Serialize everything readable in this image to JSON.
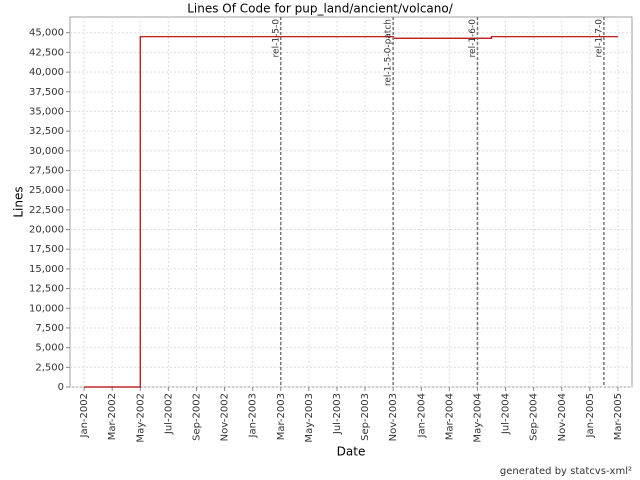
{
  "chart_data": {
    "type": "line",
    "title": "Lines Of Code for pup_land/ancient/volcano/",
    "x_label": "Date",
    "y_label": "Lines",
    "footer": "generated by statcvs-xml²",
    "x": [
      "Jan-2002",
      "May-2002",
      "May-2002",
      "Nov-2003",
      "Nov-2003",
      "Jun-2004",
      "Jun-2004",
      "Mar-2005"
    ],
    "series": [
      {
        "name": "Lines",
        "color": "#b30000",
        "values": [
          0,
          0,
          44500,
          44500,
          44300,
          44300,
          44500,
          44500
        ]
      }
    ],
    "xlim": [
      "Dec-2001",
      "Apr-2005"
    ],
    "xticks": [
      "Jan-2002",
      "Mar-2002",
      "May-2002",
      "Jul-2002",
      "Sep-2002",
      "Nov-2002",
      "Jan-2003",
      "Mar-2003",
      "May-2003",
      "Jul-2003",
      "Sep-2003",
      "Nov-2003",
      "Jan-2004",
      "Mar-2004",
      "May-2004",
      "Jul-2004",
      "Sep-2004",
      "Nov-2004",
      "Jan-2005",
      "Mar-2005"
    ],
    "ylim": [
      0,
      47000
    ],
    "yticks": [
      0,
      {
        "value": 2500,
        "label": "2,500"
      },
      {
        "value": 5000,
        "label": "5,000"
      },
      {
        "value": 7500,
        "label": "7,500"
      },
      {
        "value": 10000,
        "label": "10,000"
      },
      {
        "value": 12500,
        "label": "12,500"
      },
      {
        "value": 15000,
        "label": "15,000"
      },
      {
        "value": 17500,
        "label": "17,500"
      },
      {
        "value": 20000,
        "label": "20,000"
      },
      {
        "value": 22500,
        "label": "22,500"
      },
      {
        "value": 25000,
        "label": "25,000"
      },
      {
        "value": 27500,
        "label": "27,500"
      },
      {
        "value": 30000,
        "label": "30,000"
      },
      {
        "value": 32500,
        "label": "32,500"
      },
      {
        "value": 35000,
        "label": "35,000"
      },
      {
        "value": 37500,
        "label": "37,500"
      },
      {
        "value": 40000,
        "label": "40,000"
      },
      {
        "value": 42500,
        "label": "42,500"
      },
      {
        "value": 45000,
        "label": "45,000"
      }
    ],
    "annotations": [
      {
        "text": "rel-1-5-0",
        "x": "Mar-2003"
      },
      {
        "text": "rel-1-5-0-patch",
        "x": "Nov-2003"
      },
      {
        "text": "rel-1-6-0",
        "x": "May-2004"
      },
      {
        "text": "rel-1-7-0",
        "x": "Feb-2005"
      }
    ],
    "grid": true
  }
}
